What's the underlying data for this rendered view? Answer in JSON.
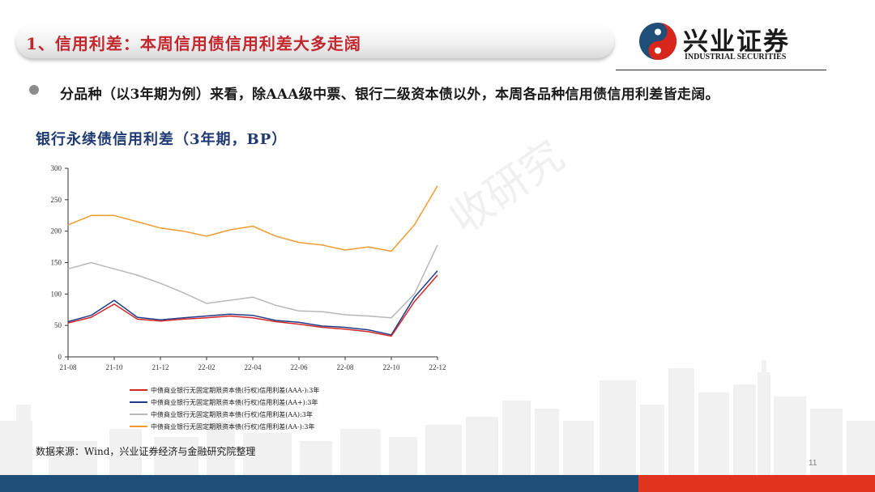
{
  "header": {
    "title": "1、信用利差：本周信用债信用利差大多走阔",
    "logo_cn": "兴业证券",
    "logo_en": "INDUSTRIAL SECURITIES"
  },
  "bullet": "分品种（以3年期为例）来看，除AAA级中票、银行二级资本债以外，本周各品种信用债信用利差皆走阔。",
  "watermark": "收研究",
  "source": "数据来源：Wind，兴业证券经济与金融研究院整理",
  "page_number": "11",
  "colors": {
    "accent_red": "#c1272d",
    "navy": "#1f3a73",
    "bar_blue": "#1f4e79",
    "bar_red": "#e0341f"
  },
  "chart_data": {
    "type": "line",
    "title": "银行永续债信用利差（3年期，BP）",
    "xlabel": "",
    "ylabel": "",
    "ylim": [
      0,
      300
    ],
    "yticks": [
      0,
      50,
      100,
      150,
      200,
      250,
      300
    ],
    "xticks": [
      "21-08",
      "21-10",
      "21-12",
      "22-02",
      "22-04",
      "22-06",
      "22-08",
      "22-10",
      "22-12"
    ],
    "x": [
      "21-08",
      "21-09",
      "21-10",
      "21-11",
      "21-12",
      "22-01",
      "22-02",
      "22-03",
      "22-04",
      "22-05",
      "22-06",
      "22-07",
      "22-08",
      "22-09",
      "22-10",
      "22-11",
      "22-12"
    ],
    "legend_position": "bottom",
    "grid": false,
    "series": [
      {
        "name": "中债商业银行无固定期限资本债(行权)信用利差(AAA-):3年",
        "color": "#d62728",
        "values": [
          54,
          63,
          84,
          60,
          57,
          60,
          62,
          65,
          62,
          56,
          52,
          47,
          44,
          40,
          33,
          88,
          130
        ]
      },
      {
        "name": "中债商业银行无固定期限资本债(行权)信用利差(AA+):3年",
        "color": "#1f3c88",
        "values": [
          56,
          66,
          90,
          63,
          59,
          62,
          65,
          68,
          66,
          58,
          55,
          49,
          47,
          43,
          35,
          95,
          137
        ]
      },
      {
        "name": "中债商业银行无固定期限资本债(行权)信用利差(AA):3年",
        "color": "#b8b8b8",
        "values": [
          140,
          150,
          140,
          130,
          117,
          102,
          85,
          90,
          95,
          82,
          73,
          72,
          67,
          65,
          62,
          100,
          178
        ]
      },
      {
        "name": "中债商业银行无固定期限资本债(行权)信用利差(AA-):3年",
        "color": "#f39b2f",
        "values": [
          210,
          225,
          225,
          215,
          205,
          200,
          192,
          202,
          208,
          192,
          182,
          178,
          170,
          175,
          168,
          210,
          272
        ]
      }
    ]
  }
}
